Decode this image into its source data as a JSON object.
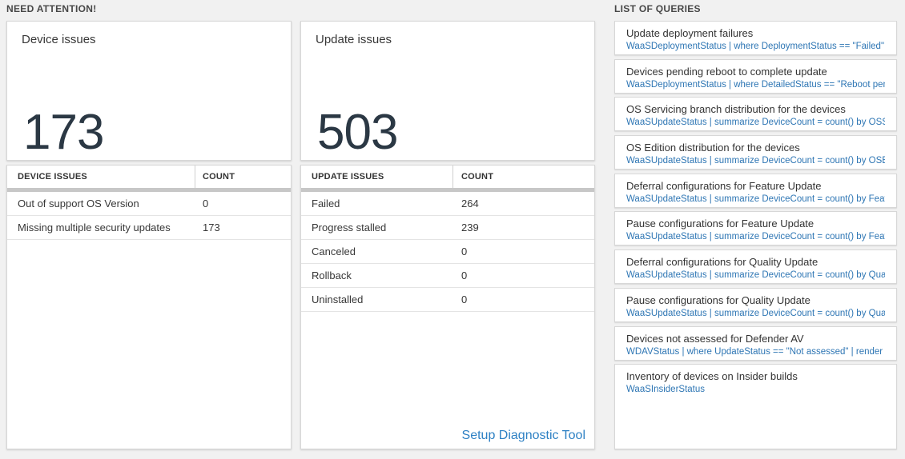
{
  "colors": {
    "page_background": "#f1f1f1",
    "card_background": "#ffffff",
    "card_border": "#d7d7d7",
    "big_number_color": "#2b3844",
    "table_header_bar": "#c7c7c7",
    "link_blue": "#2e81c4",
    "query_blue": "#2e76b4"
  },
  "need_attention": {
    "header": "NEED ATTENTION!",
    "device_card": {
      "title": "Device issues",
      "count": "173"
    },
    "update_card": {
      "title": "Update issues",
      "count": "503"
    },
    "device_table": {
      "headers": [
        "DEVICE ISSUES",
        "COUNT"
      ],
      "rows": [
        {
          "label": "Out of support OS Version",
          "count": "0"
        },
        {
          "label": "Missing multiple security updates",
          "count": "173"
        }
      ]
    },
    "update_table": {
      "headers": [
        "UPDATE ISSUES",
        "COUNT"
      ],
      "rows": [
        {
          "label": "Failed",
          "count": "264"
        },
        {
          "label": "Progress stalled",
          "count": "239"
        },
        {
          "label": "Canceled",
          "count": "0"
        },
        {
          "label": "Rollback",
          "count": "0"
        },
        {
          "label": "Uninstalled",
          "count": "0"
        }
      ],
      "link": "Setup Diagnostic Tool"
    }
  },
  "queries": {
    "header": "LIST OF QUERIES",
    "items": [
      {
        "title": "Update deployment failures",
        "query": "WaaSDeploymentStatus | where DeploymentStatus == \"Failed\" |…"
      },
      {
        "title": "Devices pending reboot to complete update",
        "query": "WaaSDeploymentStatus | where DetailedStatus == \"Reboot pend…"
      },
      {
        "title": "OS Servicing branch distribution for the devices",
        "query": "WaaSUpdateStatus | summarize DeviceCount = count() by OSSer…"
      },
      {
        "title": "OS Edition distribution for the devices",
        "query": "WaaSUpdateStatus | summarize DeviceCount = count() by OSEdit…"
      },
      {
        "title": "Deferral configurations for Feature Update",
        "query": "WaaSUpdateStatus | summarize DeviceCount = count() by Featur…"
      },
      {
        "title": "Pause configurations for Feature Update",
        "query": "WaaSUpdateStatus | summarize DeviceCount = count() by Featur…"
      },
      {
        "title": "Deferral configurations for Quality Update",
        "query": "WaaSUpdateStatus | summarize DeviceCount = count() by Qualit…"
      },
      {
        "title": "Pause configurations for Quality Update",
        "query": "WaaSUpdateStatus | summarize DeviceCount = count() by Qualit…"
      },
      {
        "title": "Devices not assessed for Defender AV",
        "query": "WDAVStatus | where UpdateStatus == \"Not assessed\" | render ta…"
      },
      {
        "title": "Inventory of devices on Insider builds",
        "query": "WaaSInsiderStatus"
      }
    ]
  }
}
